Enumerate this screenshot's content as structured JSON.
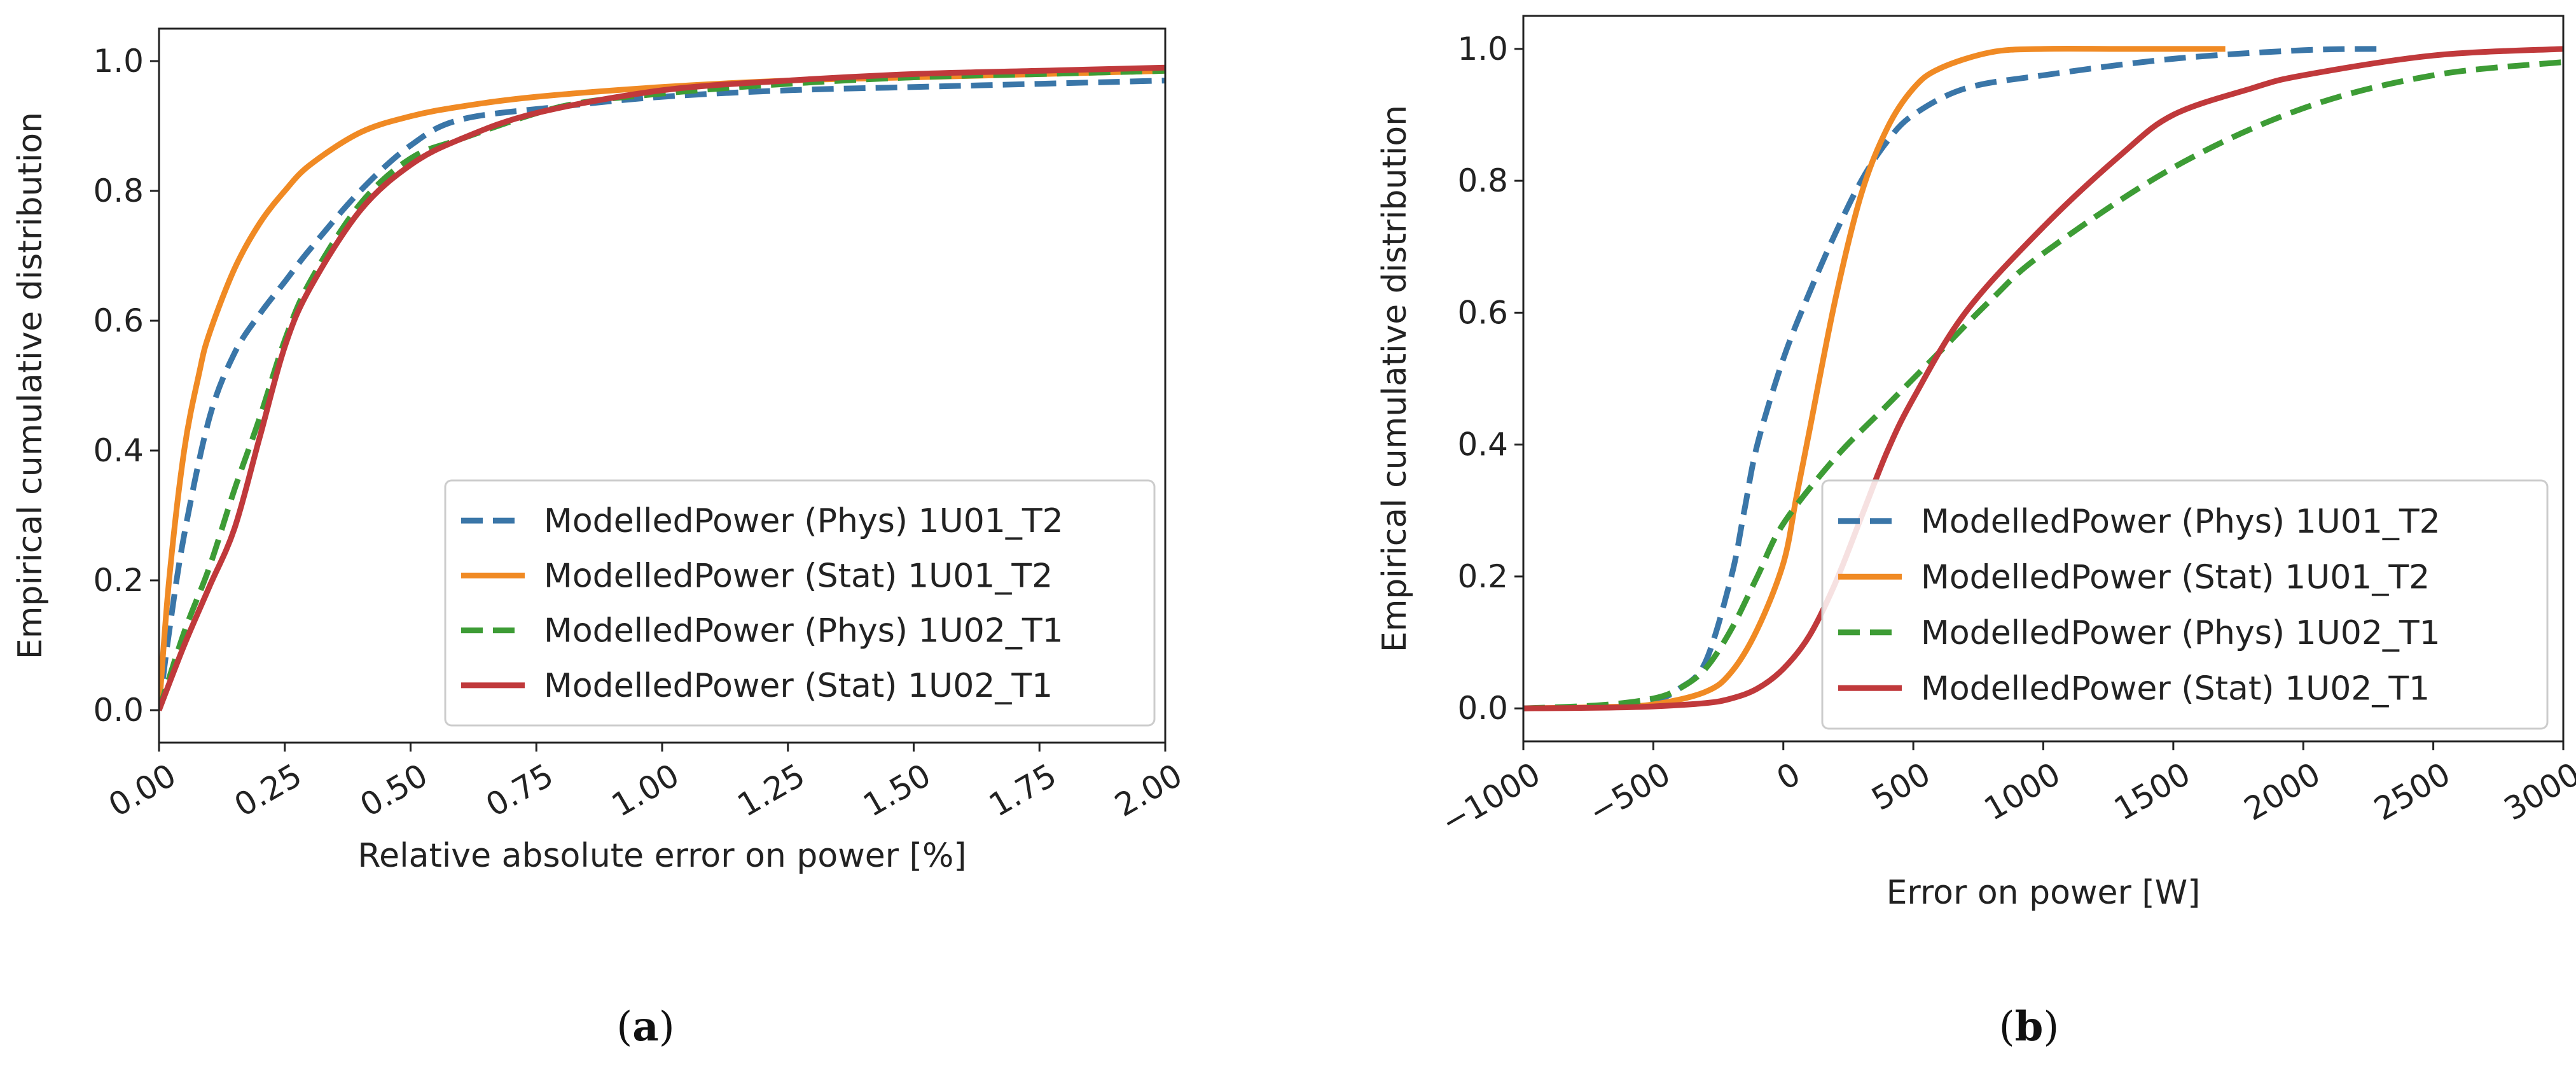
{
  "chart_data": [
    {
      "type": "line",
      "panel": "a",
      "caption": "a",
      "xlabel": "Relative absolute error on power [%]",
      "ylabel": "Empirical cumulative distribution",
      "xlim": [
        0,
        2
      ],
      "ylim": [
        -0.05,
        1.05
      ],
      "xticks": [
        0,
        0.25,
        0.5,
        0.75,
        1.0,
        1.25,
        1.5,
        1.75,
        2.0
      ],
      "xtick_labels": [
        "0.00",
        "0.25",
        "0.50",
        "0.75",
        "1.00",
        "1.25",
        "1.50",
        "1.75",
        "2.00"
      ],
      "yticks": [
        0,
        0.2,
        0.4,
        0.6,
        0.8,
        1.0
      ],
      "ytick_labels": [
        "0.0",
        "0.2",
        "0.4",
        "0.6",
        "0.8",
        "1.0"
      ],
      "legend_position": "lower-right",
      "series": [
        {
          "name": "ModelledPower (Phys) 1U01_T2",
          "color": "#3a76a8",
          "dash": "dashed",
          "x": [
            0,
            0.02,
            0.05,
            0.1,
            0.15,
            0.2,
            0.25,
            0.3,
            0.4,
            0.5,
            0.6,
            0.8,
            1.0,
            1.25,
            1.5,
            1.75,
            2.0
          ],
          "y": [
            0,
            0.12,
            0.27,
            0.45,
            0.55,
            0.61,
            0.66,
            0.71,
            0.8,
            0.87,
            0.91,
            0.93,
            0.945,
            0.955,
            0.96,
            0.965,
            0.97
          ]
        },
        {
          "name": "ModelledPower (Stat) 1U01_T2",
          "color": "#f08a24",
          "dash": "solid",
          "x": [
            0,
            0.02,
            0.05,
            0.08,
            0.1,
            0.15,
            0.2,
            0.25,
            0.3,
            0.4,
            0.5,
            0.6,
            0.75,
            1.0,
            1.25,
            1.5,
            1.75,
            2.0
          ],
          "y": [
            0,
            0.2,
            0.4,
            0.52,
            0.58,
            0.68,
            0.75,
            0.8,
            0.84,
            0.89,
            0.915,
            0.93,
            0.945,
            0.96,
            0.97,
            0.975,
            0.98,
            0.985
          ]
        },
        {
          "name": "ModelledPower (Phys) 1U02_T1",
          "color": "#3d9c35",
          "dash": "dashed",
          "x": [
            0,
            0.05,
            0.1,
            0.15,
            0.2,
            0.25,
            0.3,
            0.4,
            0.5,
            0.6,
            0.8,
            1.0,
            1.25,
            1.5,
            1.75,
            2.0
          ],
          "y": [
            0,
            0.12,
            0.22,
            0.34,
            0.45,
            0.57,
            0.66,
            0.78,
            0.85,
            0.88,
            0.93,
            0.95,
            0.965,
            0.975,
            0.98,
            0.985
          ]
        },
        {
          "name": "ModelledPower (Stat) 1U02_T1",
          "color": "#c0393b",
          "dash": "solid",
          "x": [
            0,
            0.05,
            0.1,
            0.15,
            0.2,
            0.25,
            0.3,
            0.4,
            0.5,
            0.6,
            0.75,
            1.0,
            1.25,
            1.5,
            1.75,
            2.0
          ],
          "y": [
            0,
            0.1,
            0.19,
            0.28,
            0.42,
            0.56,
            0.65,
            0.77,
            0.84,
            0.88,
            0.92,
            0.955,
            0.97,
            0.98,
            0.985,
            0.99
          ]
        }
      ]
    },
    {
      "type": "line",
      "panel": "b",
      "caption": "b",
      "xlabel": "Error on power [W]",
      "ylabel": "Empirical cumulative distribution",
      "xlim": [
        -1000,
        3000
      ],
      "ylim": [
        -0.05,
        1.05
      ],
      "xticks": [
        -1000,
        -500,
        0,
        500,
        1000,
        1500,
        2000,
        2500,
        3000
      ],
      "xtick_labels": [
        "−1000",
        "−500",
        "0",
        "500",
        "1000",
        "1500",
        "2000",
        "2500",
        "3000"
      ],
      "yticks": [
        0,
        0.2,
        0.4,
        0.6,
        0.8,
        1.0
      ],
      "ytick_labels": [
        "0.0",
        "0.2",
        "0.4",
        "0.6",
        "0.8",
        "1.0"
      ],
      "legend_position": "lower-right",
      "series": [
        {
          "name": "ModelledPower (Phys) 1U01_T2",
          "color": "#3a76a8",
          "dash": "dashed",
          "x": [
            -1000,
            -700,
            -500,
            -400,
            -300,
            -200,
            -150,
            -100,
            0,
            100,
            200,
            300,
            400,
            500,
            700,
            1000,
            1500,
            2000,
            2300
          ],
          "y": [
            0,
            0.003,
            0.012,
            0.03,
            0.07,
            0.2,
            0.3,
            0.4,
            0.53,
            0.63,
            0.72,
            0.8,
            0.86,
            0.9,
            0.94,
            0.96,
            0.985,
            0.998,
            1.0
          ]
        },
        {
          "name": "ModelledPower (Stat) 1U01_T2",
          "color": "#f08a24",
          "dash": "solid",
          "x": [
            -1000,
            -700,
            -500,
            -300,
            -200,
            -100,
            0,
            50,
            100,
            200,
            300,
            400,
            500,
            600,
            800,
            1000,
            1300,
            1700
          ],
          "y": [
            0,
            0.002,
            0.006,
            0.025,
            0.055,
            0.12,
            0.22,
            0.32,
            0.42,
            0.62,
            0.78,
            0.88,
            0.94,
            0.97,
            0.995,
            1.0,
            1.0,
            1.0
          ]
        },
        {
          "name": "ModelledPower (Phys) 1U02_T1",
          "color": "#3d9c35",
          "dash": "dashed",
          "x": [
            -1000,
            -700,
            -500,
            -400,
            -300,
            -200,
            -100,
            0,
            200,
            400,
            600,
            800,
            1000,
            1500,
            2000,
            2500,
            3000
          ],
          "y": [
            0,
            0.005,
            0.015,
            0.03,
            0.06,
            0.12,
            0.2,
            0.28,
            0.38,
            0.46,
            0.54,
            0.62,
            0.69,
            0.82,
            0.91,
            0.96,
            0.98
          ]
        },
        {
          "name": "ModelledPower (Stat) 1U02_T1",
          "color": "#c0393b",
          "dash": "solid",
          "x": [
            -1000,
            -700,
            -500,
            -300,
            -200,
            -100,
            0,
            100,
            200,
            300,
            400,
            500,
            700,
            1000,
            1300,
            1500,
            1800,
            2000,
            2500,
            3000
          ],
          "y": [
            0,
            0.001,
            0.003,
            0.008,
            0.015,
            0.03,
            0.06,
            0.11,
            0.19,
            0.29,
            0.39,
            0.47,
            0.6,
            0.73,
            0.84,
            0.9,
            0.94,
            0.96,
            0.99,
            1.0
          ]
        }
      ]
    }
  ]
}
